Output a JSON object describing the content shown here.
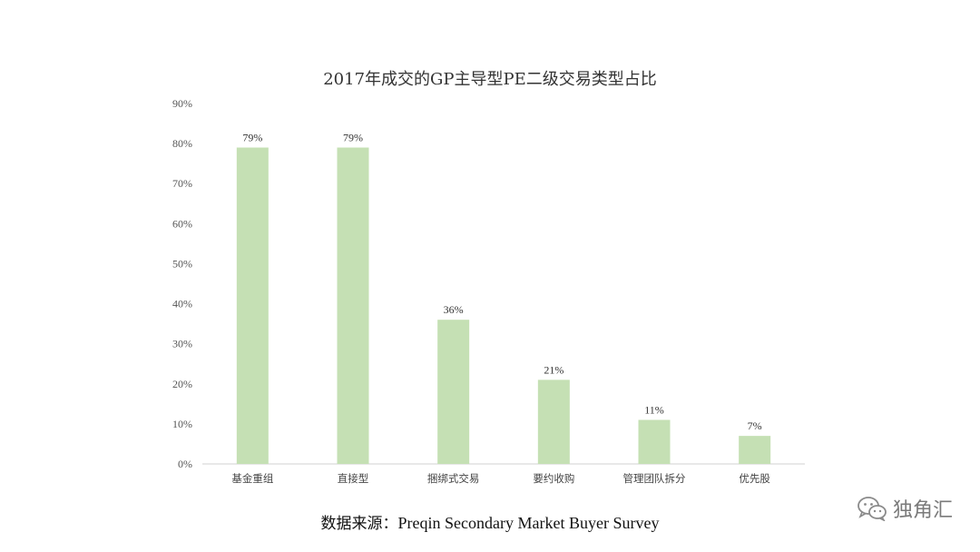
{
  "chart_data": {
    "type": "bar",
    "title": "2017年成交的GP主导型PE二级交易类型占比",
    "categories": [
      "基金重组",
      "直接型",
      "捆绑式交易",
      "要约收购",
      "管理团队拆分",
      "优先股"
    ],
    "values": [
      79,
      79,
      36,
      21,
      11,
      7
    ],
    "data_labels": [
      "79%",
      "79%",
      "36%",
      "21%",
      "11%",
      "7%"
    ],
    "y_ticks": [
      0,
      10,
      20,
      30,
      40,
      50,
      60,
      70,
      80,
      90
    ],
    "y_tick_labels": [
      "0%",
      "10%",
      "20%",
      "30%",
      "40%",
      "50%",
      "60%",
      "70%",
      "80%",
      "90%"
    ],
    "ylim": [
      0,
      90
    ],
    "xlabel": "",
    "ylabel": "",
    "grid": false,
    "legend": "none",
    "bar_color": "#c5e0b4"
  },
  "source": {
    "label": "数据来源：",
    "value": "Preqin Secondary Market Buyer Survey"
  },
  "watermark": {
    "text": "独角汇",
    "icon": "wechat-icon"
  }
}
